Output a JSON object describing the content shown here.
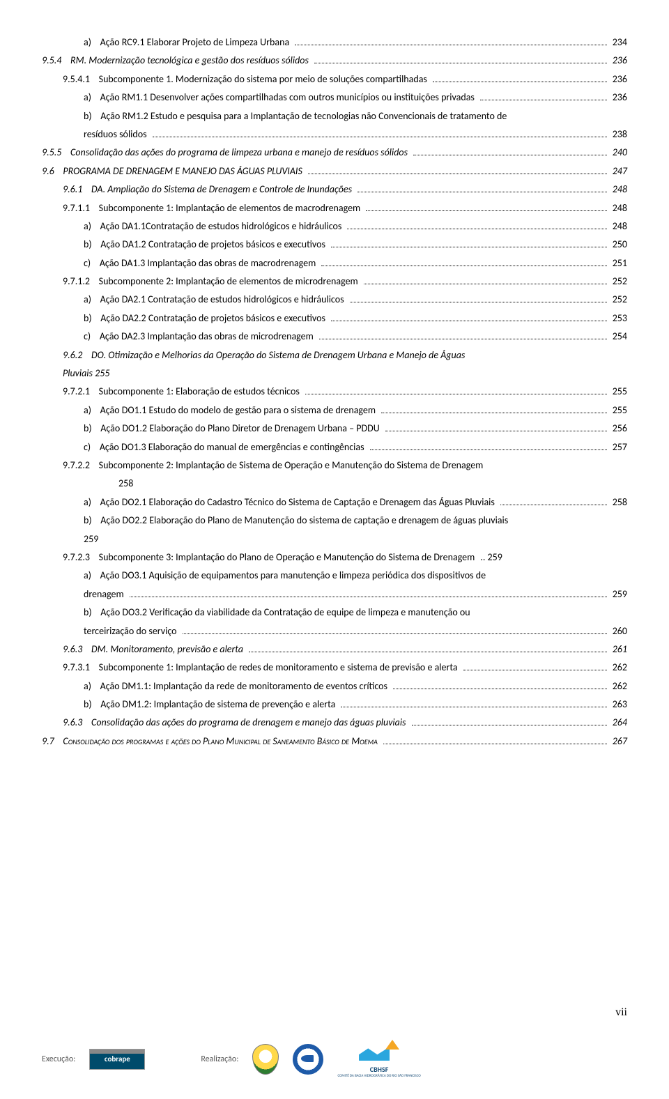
{
  "page_number": "vii",
  "footer": {
    "execucao": "Execução:",
    "realizacao": "Realização:",
    "cobrape": "cobrape",
    "cbhsf": "CBHSF",
    "cbhsf_sub": "COMITÊ DA BACIA HIDROGRÁFICA DO RIO SÃO FRANCISCO"
  },
  "toc": [
    {
      "cls": "level-a",
      "label": "a)",
      "text": "Ação RC9.1 Elaborar Projeto de Limpeza Urbana",
      "page": "234"
    },
    {
      "cls": "level-1",
      "label": "9.5.4",
      "text": "RM. Modernização tecnológica e gestão dos resíduos sólidos",
      "page": "236"
    },
    {
      "cls": "level-3",
      "label": "9.5.4.1",
      "text": "Subcomponente 1. Modernização do sistema por meio de soluções compartilhadas",
      "page": "236"
    },
    {
      "cls": "level-a",
      "label": "a)",
      "text": "Ação RM1.1 Desenvolver ações compartilhadas com outros municípios ou instituições privadas",
      "page": "236"
    },
    {
      "cls": "level-a",
      "label": "b)",
      "text": "Ação RM1.2 Estudo e pesquisa para a Implantação de tecnologias não Convencionais de tratamento de",
      "page": null,
      "wrap": "resíduos sólidos",
      "wrap_page": "238"
    },
    {
      "cls": "level-1",
      "label": "9.5.5",
      "text": "Consolidação das ações do programa de limpeza urbana e manejo de resíduos sólidos",
      "page": "240"
    },
    {
      "cls": "level-1 smallcaps",
      "label": "9.6",
      "text": "PROGRAMA DE DRENAGEM E MANEJO DAS ÁGUAS PLUVIAIS",
      "page": "247",
      "upper": true
    },
    {
      "cls": "level-2",
      "label": "9.6.1",
      "text": "DA. Ampliação do Sistema de Drenagem e Controle de Inundações",
      "page": "248"
    },
    {
      "cls": "level-3",
      "label": "9.7.1.1",
      "text": "Subcomponente 1: Implantação de elementos de macrodrenagem",
      "page": "248"
    },
    {
      "cls": "level-a",
      "label": "a)",
      "text": "Ação DA1.1Contratação de estudos hidrológicos e hidráulicos",
      "page": "248"
    },
    {
      "cls": "level-a",
      "label": "b)",
      "text": "Ação DA1.2 Contratação de projetos básicos e executivos",
      "page": "250"
    },
    {
      "cls": "level-a",
      "label": "c)",
      "text": "Ação DA1.3 Implantação das obras de macrodrenagem",
      "page": "251"
    },
    {
      "cls": "level-3",
      "label": "9.7.1.2",
      "text": "Subcomponente 2: Implantação de elementos de microdrenagem",
      "page": "252"
    },
    {
      "cls": "level-a",
      "label": "a)",
      "text": "Ação DA2.1 Contratação de estudos hidrológicos e hidráulicos",
      "page": "252"
    },
    {
      "cls": "level-a",
      "label": "b)",
      "text": "Ação DA2.2 Contratação de projetos básicos e executivos",
      "page": "253"
    },
    {
      "cls": "level-a",
      "label": "c)",
      "text": "Ação DA2.3 Implantação das obras de microdrenagem",
      "page": "254"
    },
    {
      "cls": "level-2",
      "label": "9.6.2",
      "text": "DO. Otimização e Melhorias da Operação do Sistema de Drenagem Urbana e Manejo de Águas",
      "page": null,
      "wrap_inline": "Pluviais  255"
    },
    {
      "cls": "level-3",
      "label": "9.7.2.1",
      "text": "Subcomponente 1: Elaboração de estudos técnicos",
      "page": "255"
    },
    {
      "cls": "level-a",
      "label": "a)",
      "text": "Ação DO1.1 Estudo do modelo de gestão para o sistema de drenagem",
      "page": "255"
    },
    {
      "cls": "level-a",
      "label": "b)",
      "text": "Ação DO1.2 Elaboração do Plano Diretor de Drenagem Urbana – PDDU",
      "page": "256"
    },
    {
      "cls": "level-a",
      "label": "c)",
      "text": "Ação DO1.3 Elaboração do manual de emergências e contingências",
      "page": "257"
    },
    {
      "cls": "level-3",
      "label": "9.7.2.2",
      "text": "Subcomponente 2: Implantação de Sistema de Operação e Manutenção do Sistema de Drenagem",
      "page": null,
      "wrap_sub": "258"
    },
    {
      "cls": "level-a",
      "label": "a)",
      "text": "Ação DO2.1 Elaboração do Cadastro Técnico do Sistema de Captação e Drenagem das Águas Pluviais",
      "page": "258"
    },
    {
      "cls": "level-a",
      "label": "b)",
      "text": "Ação DO2.2 Elaboração do Plano de Manutenção do sistema de captação e drenagem de águas pluviais",
      "page": null,
      "wrap": "259",
      "wrap_page": null,
      "plain": true
    },
    {
      "cls": "level-3",
      "label": "9.7.2.3",
      "text": "Subcomponente 3: Implantação do Plano de Operação e Manutenção do Sistema de Drenagem",
      "page": "259",
      "tight": true
    },
    {
      "cls": "level-a",
      "label": "a)",
      "text": "Ação DO3.1 Aquisição de equipamentos para manutenção e limpeza periódica dos dispositivos de",
      "page": null,
      "wrap": "drenagem",
      "wrap_page": "259"
    },
    {
      "cls": "level-a",
      "label": "b)",
      "text": "Ação DO3.2 Verificação da viabilidade da Contratação de equipe de limpeza e manutenção ou",
      "page": null,
      "wrap": "terceirização do serviço",
      "wrap_page": "260"
    },
    {
      "cls": "level-2",
      "label": "9.6.3",
      "text": "DM. Monitoramento, previsão e alerta",
      "page": "261"
    },
    {
      "cls": "level-3",
      "label": "9.7.3.1",
      "text": "Subcomponente 1: Implantação de redes de monitoramento e sistema de previsão e alerta",
      "page": "262"
    },
    {
      "cls": "level-a",
      "label": "a)",
      "text": "Ação DM1.1: Implantação da rede de monitoramento de eventos críticos",
      "page": "262"
    },
    {
      "cls": "level-a",
      "label": "b)",
      "text": "Ação DM1.2: Implantação de sistema de prevenção e alerta",
      "page": "263"
    },
    {
      "cls": "level-2",
      "label": "9.6.3",
      "text": "Consolidação das ações do programa de drenagem e manejo das águas pluviais",
      "page": "264"
    },
    {
      "cls": "level-1 smallcaps",
      "label": "9.7",
      "text": "Consolidação dos programas e ações do Plano Municipal de Saneamento Básico de Moema",
      "page": "267",
      "sc": true
    }
  ]
}
